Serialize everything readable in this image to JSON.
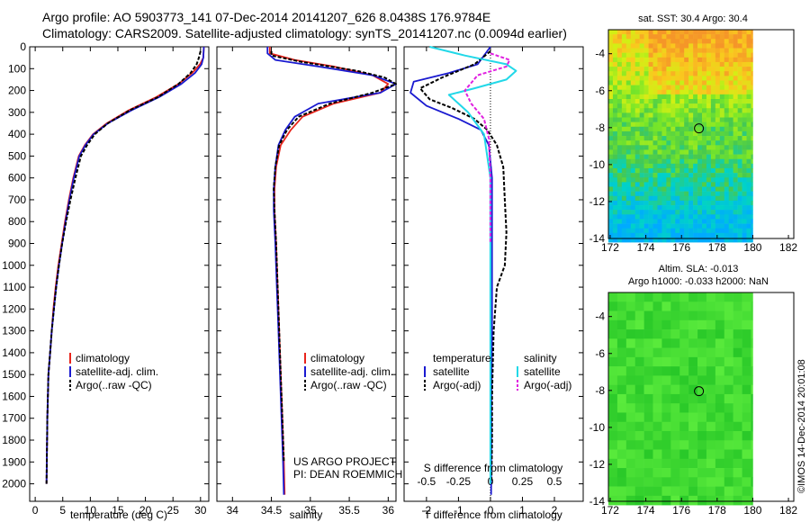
{
  "header": {
    "line1": "Argo profile: AO 5903773_141 07-Dec-2014 20141207_626 8.0438S 176.9784E",
    "line2": "Climatology: CARS2009. Satellite-adjusted climatology: synTS_20141207.nc (0.0094d earlier)"
  },
  "colors": {
    "climatology": "#e8251c",
    "satellite": "#1a1ad0",
    "argo": "#000000",
    "satellite_salinity": "#22d8e8",
    "argo_salinity": "#e020e0"
  },
  "chart_data": [
    {
      "id": "temperature",
      "type": "line",
      "xlabel": "temperature (deg C)",
      "ylabel": "",
      "xlim": [
        -1,
        31.5
      ],
      "ylim": [
        2080,
        0
      ],
      "xticks": [
        0,
        5,
        10,
        15,
        20,
        25,
        30
      ],
      "xtick_labels": [
        "0",
        "5",
        "10",
        "15",
        "20",
        "25",
        "30"
      ],
      "yticks": [
        0,
        100,
        200,
        300,
        400,
        500,
        600,
        700,
        800,
        900,
        1000,
        1100,
        1200,
        1300,
        1400,
        1500,
        1600,
        1700,
        1800,
        1900,
        2000
      ],
      "ytick_labels": [
        "0",
        "100",
        "200",
        "300",
        "400",
        "500",
        "600",
        "700",
        "800",
        "900",
        "1000",
        "1100",
        "1200",
        "1300",
        "1400",
        "1500",
        "1600",
        "1700",
        "1800",
        "1900",
        "2000"
      ],
      "legend": [
        "climatology",
        "satellite-adj. clim.",
        "Argo(..raw -QC)"
      ],
      "series": [
        {
          "name": "climatology",
          "x": [
            30.6,
            30.5,
            29.9,
            28.5,
            26.0,
            22.0,
            17.0,
            13.0,
            10.5,
            9.0,
            7.9,
            6.9,
            6.1,
            5.4,
            4.8,
            4.2,
            3.7,
            3.3,
            3.0,
            2.7,
            2.4,
            2.2,
            2.05
          ],
          "y": [
            0,
            50,
            80,
            120,
            170,
            230,
            290,
            350,
            400,
            450,
            500,
            600,
            700,
            800,
            900,
            1000,
            1100,
            1200,
            1300,
            1400,
            1500,
            1700,
            2000
          ]
        },
        {
          "name": "satellite-adj. clim.",
          "x": [
            30.6,
            30.5,
            30.2,
            29.0,
            26.5,
            22.5,
            17.5,
            13.2,
            10.6,
            9.1,
            8.0,
            7.0,
            6.2,
            5.5,
            4.9,
            4.3,
            3.8,
            3.4,
            3.0,
            2.7,
            2.4,
            2.2,
            2.05
          ],
          "y": [
            0,
            50,
            80,
            120,
            170,
            230,
            290,
            350,
            400,
            450,
            500,
            600,
            700,
            800,
            900,
            1000,
            1100,
            1200,
            1300,
            1400,
            1500,
            1700,
            2000
          ]
        },
        {
          "name": "Argo(..raw -QC)",
          "x": [
            30.0,
            29.7,
            29.3,
            28.2,
            26.0,
            22.3,
            17.2,
            13.2,
            10.8,
            9.4,
            8.3,
            7.3,
            6.4,
            5.6,
            4.9,
            4.3,
            3.8,
            3.4,
            3.0,
            2.7,
            2.4,
            2.2,
            2.05
          ],
          "y": [
            20,
            50,
            80,
            120,
            170,
            230,
            290,
            350,
            400,
            450,
            500,
            600,
            700,
            800,
            900,
            1000,
            1100,
            1200,
            1300,
            1400,
            1500,
            1700,
            2000
          ]
        }
      ]
    },
    {
      "id": "salinity",
      "type": "line",
      "xlabel": "salinity",
      "ylabel": "",
      "xlim": [
        33.8,
        36.1
      ],
      "ylim": [
        2080,
        0
      ],
      "xticks": [
        34,
        34.5,
        35,
        35.5,
        36
      ],
      "xtick_labels": [
        "34",
        "34.5",
        "35",
        "35.5",
        "36"
      ],
      "legend": [
        "climatology",
        "satellite-adj. clim.",
        "Argo(..raw -QC)"
      ],
      "annotations": [
        "US ARGO PROJECT",
        "PI: DEAN ROEMMICH"
      ],
      "series": [
        {
          "name": "climatology",
          "x": [
            34.48,
            34.48,
            34.8,
            35.3,
            35.8,
            36.0,
            35.9,
            35.3,
            34.9,
            34.75,
            34.62,
            34.56,
            34.54,
            34.54,
            34.56,
            34.58,
            34.6,
            34.62,
            34.64,
            34.66,
            34.67
          ],
          "y": [
            0,
            30,
            60,
            90,
            130,
            170,
            210,
            260,
            320,
            380,
            450,
            550,
            650,
            750,
            900,
            1100,
            1300,
            1500,
            1700,
            1900,
            2050
          ]
        },
        {
          "name": "satellite-adj. clim.",
          "x": [
            34.45,
            34.45,
            34.55,
            35.1,
            35.8,
            36.1,
            35.9,
            35.1,
            34.8,
            34.68,
            34.59,
            34.55,
            34.53,
            34.53,
            34.55,
            34.57,
            34.59,
            34.61,
            34.63,
            34.65,
            34.66
          ],
          "y": [
            0,
            30,
            60,
            90,
            130,
            170,
            210,
            260,
            320,
            380,
            450,
            550,
            650,
            750,
            900,
            1100,
            1300,
            1500,
            1700,
            1900,
            2050
          ]
        },
        {
          "name": "Argo(..raw -QC)",
          "x": [
            34.5,
            34.5,
            34.9,
            35.6,
            35.95,
            36.1,
            35.8,
            35.25,
            34.85,
            34.7,
            34.6,
            34.55,
            34.53,
            34.54,
            34.56,
            34.58,
            34.6,
            34.62,
            34.64,
            34.66
          ],
          "y": [
            20,
            40,
            70,
            110,
            140,
            170,
            210,
            260,
            320,
            380,
            450,
            550,
            650,
            750,
            900,
            1100,
            1300,
            1500,
            1700,
            1900
          ]
        }
      ]
    },
    {
      "id": "differences",
      "type": "line",
      "xlabel": "T difference from climatology",
      "xlabel_top": "S difference from climatology",
      "xlim": [
        -2.7,
        2.9
      ],
      "ylim": [
        2080,
        0
      ],
      "xticks": [
        -2,
        -1,
        0,
        1,
        2
      ],
      "xtick_labels": [
        "-2",
        "-1",
        "0",
        "1",
        "2"
      ],
      "s_ticks": [
        -0.5,
        -0.25,
        0,
        0.25,
        0.5
      ],
      "s_tick_labels": [
        "-0.5",
        "-0.25",
        "0",
        "0.25",
        "0.5"
      ],
      "legend_temperature_title": "temperature",
      "legend_salinity_title": "salinity",
      "legend": [
        "satellite",
        "Argo(-adj)",
        "satellite",
        "Argo(-adj)"
      ],
      "series": [
        {
          "name": "temperature satellite",
          "x": [
            0.0,
            -0.4,
            -1.3,
            -2.4,
            -2.5,
            -2.0,
            -1.0,
            -0.3,
            -0.05,
            0.05,
            0.05,
            0.05,
            0.05,
            0.03,
            0.03,
            0.02
          ],
          "y": [
            0,
            80,
            120,
            160,
            210,
            270,
            330,
            380,
            450,
            600,
            800,
            1000,
            1300,
            1600,
            1800,
            2050
          ]
        },
        {
          "name": "temperature Argo(-adj)",
          "x": [
            0.0,
            -0.5,
            -1.5,
            -2.2,
            -1.9,
            -1.2,
            -0.5,
            -0.1,
            0.2,
            0.4,
            0.45,
            0.5,
            0.45,
            0.2,
            0.1,
            0.05,
            0.05,
            0.03
          ],
          "y": [
            20,
            80,
            140,
            190,
            240,
            280,
            330,
            380,
            450,
            550,
            700,
            850,
            1000,
            1100,
            1300,
            1600,
            1800,
            2000
          ]
        },
        {
          "name": "salinity satellite",
          "x": [
            -1.9,
            -0.8,
            0.5,
            0.8,
            0.5,
            -0.5,
            -1.3,
            -0.7,
            -0.2,
            0.0,
            0.0,
            0.0,
            0.0
          ],
          "y": [
            0,
            40,
            80,
            110,
            150,
            190,
            220,
            300,
            400,
            600,
            800,
            1200,
            2000
          ]
        },
        {
          "name": "salinity Argo(-adj)",
          "x": [
            0.0,
            0.6,
            0.5,
            -0.4,
            -0.8,
            -0.6,
            -0.2,
            -0.05,
            0.0,
            0.0
          ],
          "y": [
            30,
            60,
            90,
            130,
            200,
            260,
            330,
            420,
            600,
            900
          ]
        }
      ]
    },
    {
      "id": "sst-map",
      "type": "heatmap",
      "title": "sat. SST: 30.4  Argo: 30.4",
      "xlim": [
        171.9,
        182.3
      ],
      "ylim": [
        -14,
        -2.7
      ],
      "xticks": [
        172,
        174,
        176,
        178,
        180,
        182
      ],
      "xtick_labels": [
        "172",
        "174",
        "176",
        "178",
        "180",
        "182"
      ],
      "yticks": [
        -4,
        -6,
        -8,
        -10,
        -12,
        -14
      ],
      "ytick_labels": [
        "-4",
        "-6",
        "-8",
        "-10",
        "-12",
        "-14"
      ],
      "marker": {
        "lon": 176.98,
        "lat": -8.04
      }
    },
    {
      "id": "sla-map",
      "type": "heatmap",
      "title": "Altim. SLA: -0.013",
      "subtitle": "Argo h1000: -0.033 h2000: NaN",
      "xlim": [
        171.9,
        182.3
      ],
      "ylim": [
        -14,
        -2.7
      ],
      "xticks": [
        172,
        174,
        176,
        178,
        180,
        182
      ],
      "xtick_labels": [
        "172",
        "174",
        "176",
        "178",
        "180",
        "182"
      ],
      "yticks": [
        -4,
        -6,
        -8,
        -10,
        -12,
        -14
      ],
      "ytick_labels": [
        "-4",
        "-6",
        "-8",
        "-10",
        "-12",
        "-14"
      ],
      "marker": {
        "lon": 176.98,
        "lat": -8.04
      }
    }
  ],
  "stamp": "©IMOS 14-Dec-2014 20:01:08"
}
